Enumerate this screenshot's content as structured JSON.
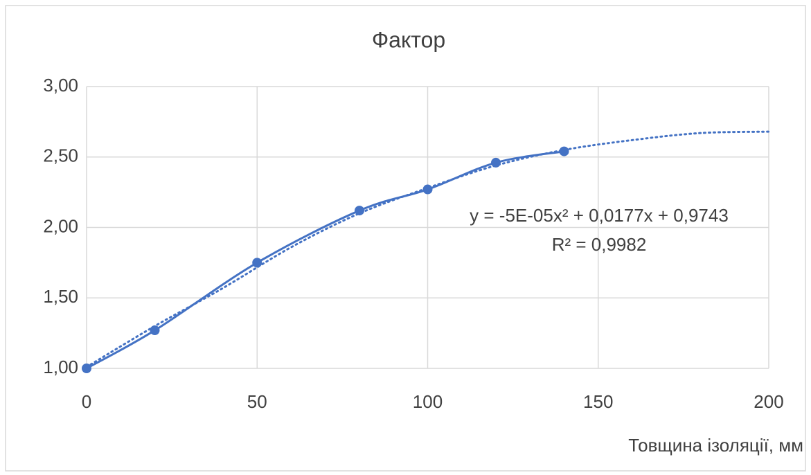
{
  "chart_data": {
    "type": "scatter",
    "title": "Фактор",
    "x_label": "Товщина ізоляції, мм",
    "series": [
      {
        "color": "#4472c4",
        "x": [
          0,
          20,
          50,
          80,
          100,
          120,
          140
        ],
        "values": [
          1.0,
          1.27,
          1.75,
          2.12,
          2.27,
          2.46,
          2.54
        ]
      }
    ],
    "trendline": {
      "color": "#4472c4",
      "equation": "y = -5E-05x² + 0,0177x + 0,9743",
      "r_squared": "R² = 0,9982",
      "x": [
        0,
        20,
        40,
        60,
        80,
        100,
        120,
        140,
        160,
        180,
        200
      ],
      "values": [
        1.01,
        1.3,
        1.57,
        1.86,
        2.1,
        2.28,
        2.44,
        2.55,
        2.62,
        2.67,
        2.68
      ]
    },
    "xlim": [
      0,
      200
    ],
    "xticks": [
      0,
      50,
      100,
      150,
      200
    ],
    "ylim": [
      1,
      3
    ],
    "yticks": [
      {
        "value": 1,
        "label": "1,00"
      },
      {
        "value": 1.5,
        "label": "1,50"
      },
      {
        "value": 2,
        "label": "2,00"
      },
      {
        "value": 2.5,
        "label": "2,50"
      },
      {
        "value": 3,
        "label": "3,00"
      }
    ],
    "grid": true
  }
}
